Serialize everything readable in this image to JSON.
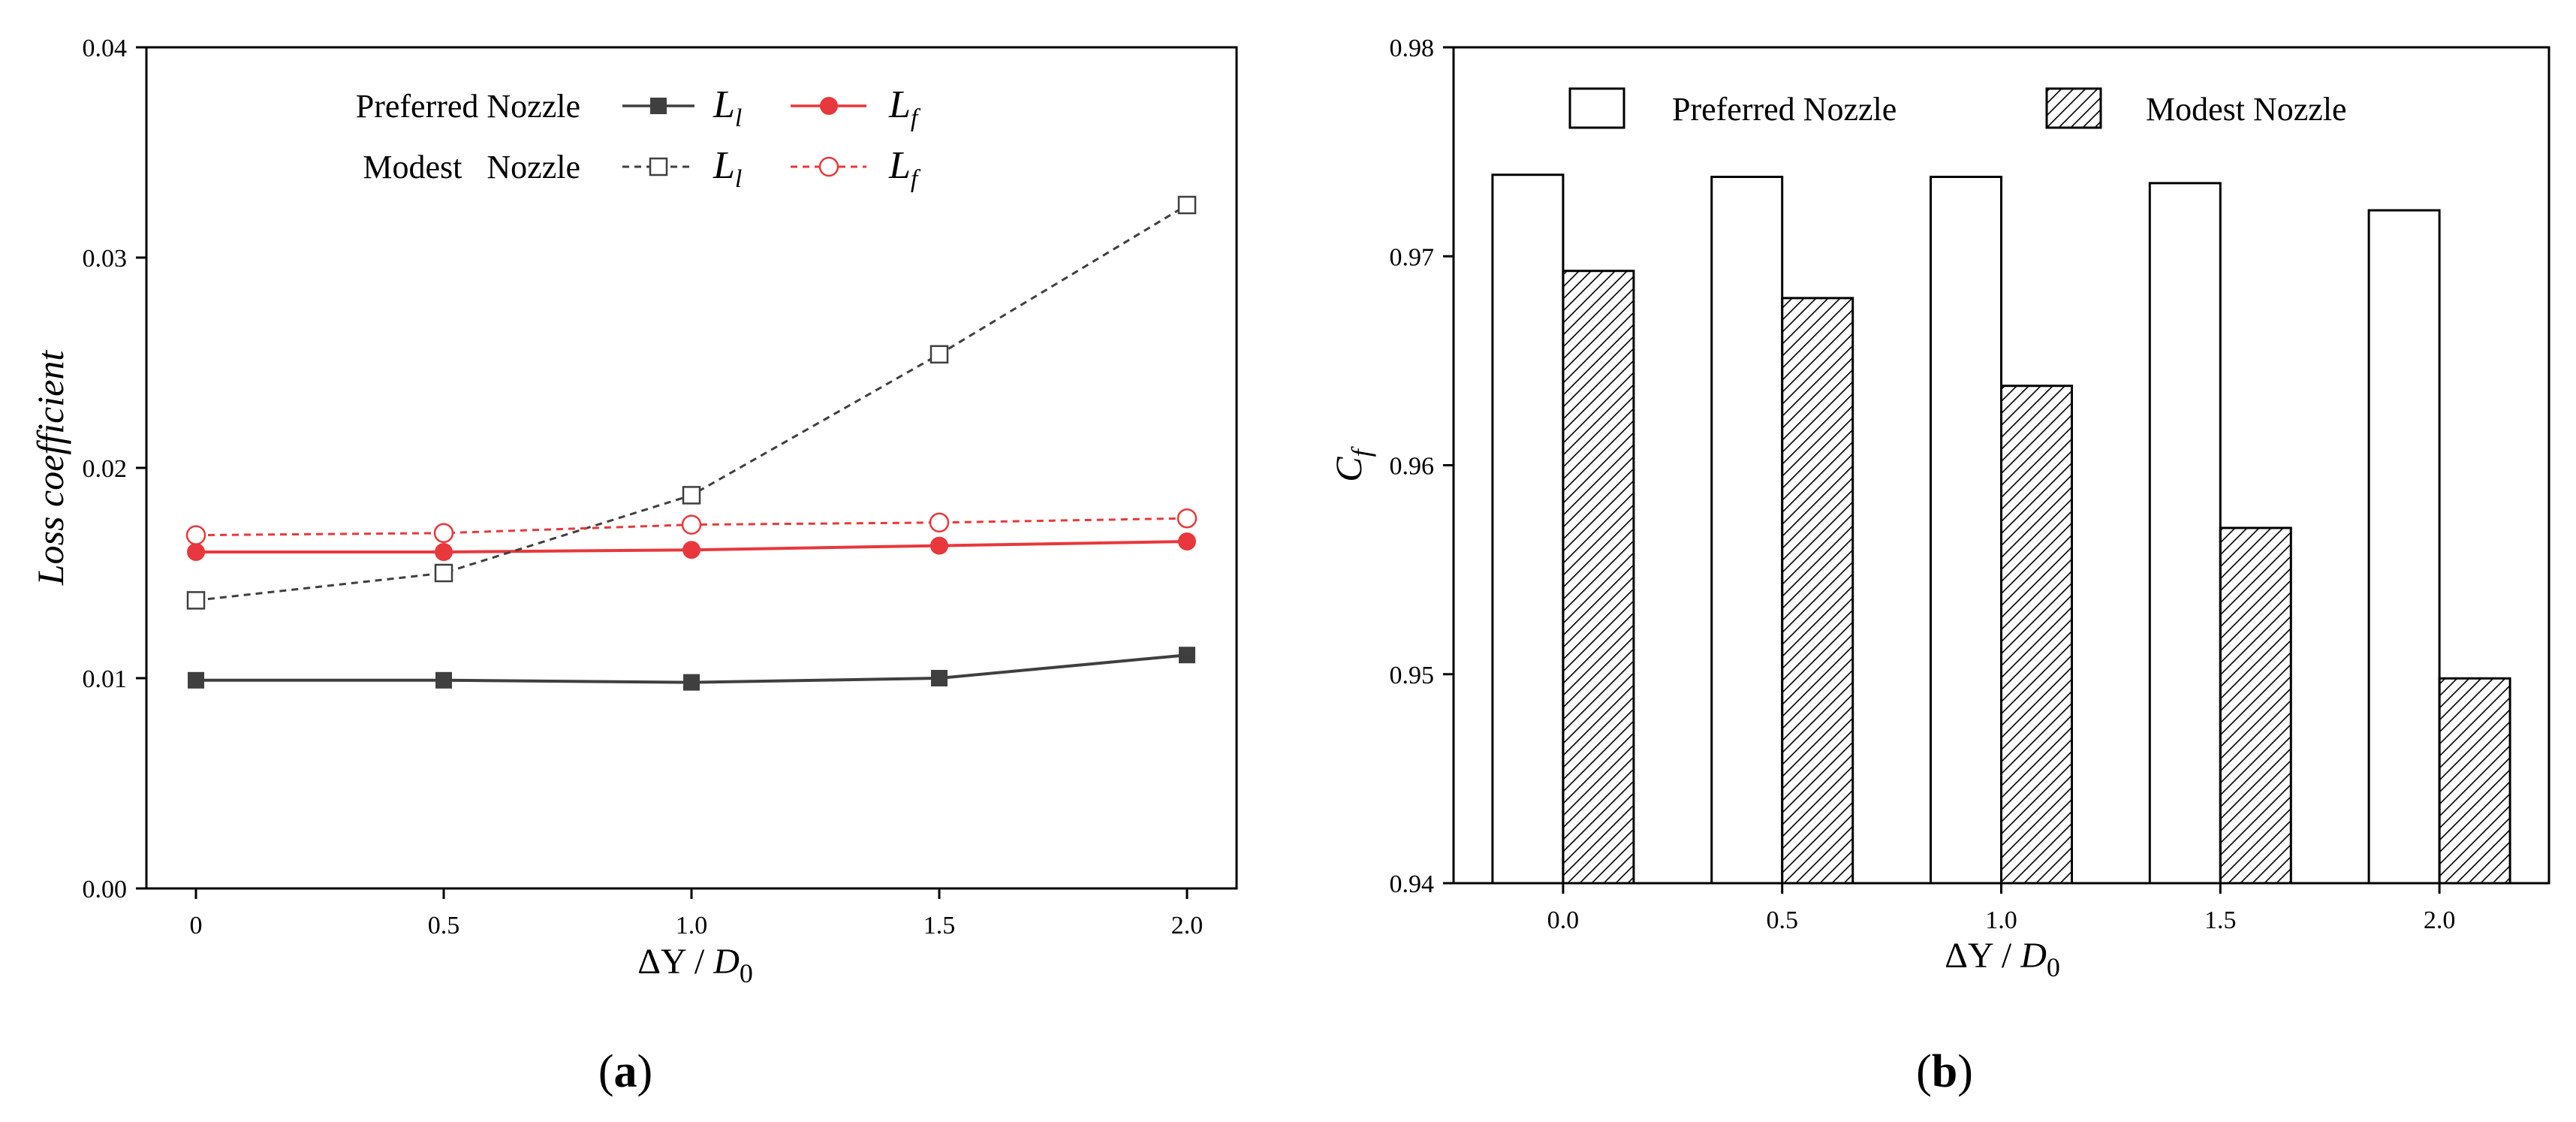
{
  "chart_data": [
    {
      "panel": "a",
      "type": "line",
      "panel_label": {
        "open": "(",
        "letter": "a",
        "close": ")"
      },
      "xlabel": {
        "delta": "ΔY",
        "var": "Y",
        "sep": " / ",
        "base": "D",
        "sub": "0"
      },
      "ylabel": "Loss coefficient",
      "xlim": [
        -0.1,
        2.1
      ],
      "ylim": [
        0,
        0.04
      ],
      "x_ticks": [
        0,
        0.5,
        1,
        1.5,
        2
      ],
      "x_tick_labels": [
        "0",
        "0.5",
        "1.0",
        "1.5",
        "2.0"
      ],
      "y_ticks": [
        0,
        0.01,
        0.02,
        0.03,
        0.04
      ],
      "y_tick_labels": [
        "0.00",
        "0.01",
        "0.02",
        "0.03",
        "0.04"
      ],
      "legend_rows": [
        {
          "label": "Preferred Nozzle",
          "sym1": "L",
          "sub1": "l",
          "sym2": "L",
          "sub2": "f"
        },
        {
          "label": "Modest   Nozzle",
          "sym1": "L",
          "sub1": "l",
          "sym2": "L",
          "sub2": "f"
        }
      ],
      "x": [
        0,
        0.5,
        1.0,
        1.5,
        2.0
      ],
      "series": [
        {
          "name": "Preferred Nozzle Ll",
          "color": "#3f3f3f",
          "marker": "square-filled",
          "dash": false,
          "values": [
            0.0099,
            0.0099,
            0.0098,
            0.01,
            0.0111
          ]
        },
        {
          "name": "Preferred Nozzle Lf",
          "color": "#e8383d",
          "marker": "circle-filled",
          "dash": false,
          "values": [
            0.016,
            0.016,
            0.0161,
            0.0163,
            0.0165
          ]
        },
        {
          "name": "Modest Nozzle Ll",
          "color": "#3f3f3f",
          "marker": "square-open",
          "dash": true,
          "values": [
            0.0137,
            0.015,
            0.0187,
            0.0254,
            0.0325
          ]
        },
        {
          "name": "Modest Nozzle Lf",
          "color": "#e8383d",
          "marker": "circle-open",
          "dash": true,
          "values": [
            0.0168,
            0.0169,
            0.0173,
            0.0174,
            0.0176
          ]
        }
      ]
    },
    {
      "panel": "b",
      "type": "bar",
      "panel_label": {
        "open": "(",
        "letter": "b",
        "close": ")"
      },
      "xlabel": {
        "delta": "ΔY",
        "var": "Y",
        "sep": " / ",
        "base": "D",
        "sub": "0"
      },
      "ylabel": {
        "base": "C",
        "sub": "f"
      },
      "categories": [
        "0.0",
        "0.5",
        "1.0",
        "1.5",
        "2.0"
      ],
      "ylim": [
        0.94,
        0.98
      ],
      "y_ticks": [
        0.94,
        0.95,
        0.96,
        0.97,
        0.98
      ],
      "y_tick_labels": [
        "0.94",
        "0.95",
        "0.96",
        "0.97",
        "0.98"
      ],
      "legend": [
        "Preferred Nozzle",
        "Modest Nozzle"
      ],
      "series": [
        {
          "name": "Preferred Nozzle",
          "fill": "open",
          "values": [
            0.9739,
            0.9738,
            0.9738,
            0.9735,
            0.9722
          ]
        },
        {
          "name": "Modest Nozzle",
          "fill": "hatched",
          "values": [
            0.9693,
            0.968,
            0.9638,
            0.957,
            0.9498
          ]
        }
      ]
    }
  ]
}
